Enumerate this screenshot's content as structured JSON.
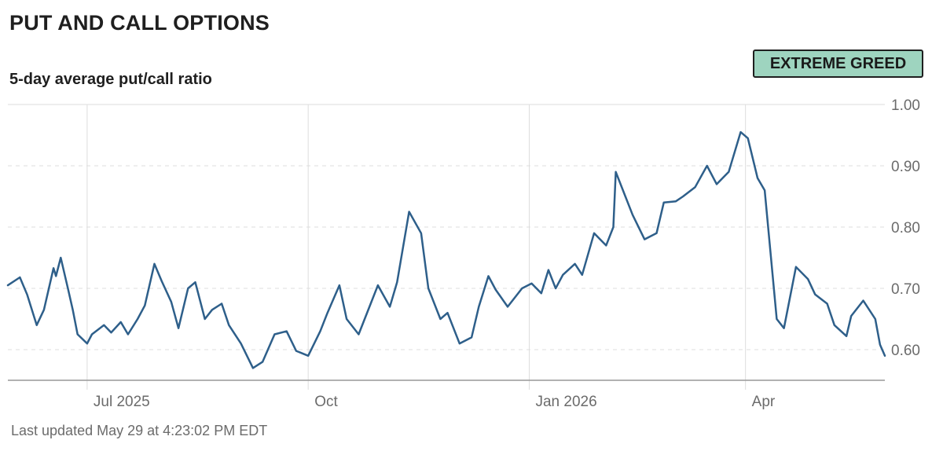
{
  "header": {
    "title": "PUT AND CALL OPTIONS",
    "subtitle": "5-day average put/call ratio",
    "badge": "EXTREME GREED"
  },
  "footer": {
    "last_updated": "Last updated May 29 at 4:23:02 PM EDT"
  },
  "colors": {
    "line": "#2e5f8a",
    "badge_bg": "#9ed4bf",
    "grid": "#dddddd",
    "axis": "#999999"
  },
  "chart_data": {
    "type": "line",
    "title": "PUT AND CALL OPTIONS",
    "subtitle": "5-day average put/call ratio",
    "xlabel": "",
    "ylabel": "",
    "ylim": [
      0.55,
      1.0
    ],
    "y_ticks": [
      0.6,
      0.7,
      0.8,
      0.9,
      1.0
    ],
    "y_tick_labels": [
      "0.60",
      "0.70",
      "0.80",
      "0.90",
      "1.00"
    ],
    "x_range": [
      "2025-05-29",
      "2026-05-29"
    ],
    "x_ticks": [
      "2025-07-01",
      "2025-10-01",
      "2026-01-01",
      "2026-04-01"
    ],
    "x_tick_labels": [
      "Jul 2025",
      "Oct",
      "Jan 2026",
      "Apr"
    ],
    "grid": true,
    "series": [
      {
        "x": [
          "2025-05-29",
          "2025-06-03",
          "2025-06-06",
          "2025-06-10",
          "2025-06-13",
          "2025-06-17",
          "2025-06-18",
          "2025-06-20",
          "2025-06-23",
          "2025-06-25",
          "2025-06-27",
          "2025-07-01",
          "2025-07-03",
          "2025-07-08",
          "2025-07-11",
          "2025-07-15",
          "2025-07-18",
          "2025-07-22",
          "2025-07-25",
          "2025-07-29",
          "2025-08-01",
          "2025-08-05",
          "2025-08-08",
          "2025-08-12",
          "2025-08-15",
          "2025-08-19",
          "2025-08-22",
          "2025-08-26",
          "2025-08-29",
          "2025-09-03",
          "2025-09-08",
          "2025-09-12",
          "2025-09-17",
          "2025-09-22",
          "2025-09-26",
          "2025-10-01",
          "2025-10-06",
          "2025-10-09",
          "2025-10-14",
          "2025-10-17",
          "2025-10-22",
          "2025-10-27",
          "2025-10-30",
          "2025-11-04",
          "2025-11-07",
          "2025-11-12",
          "2025-11-17",
          "2025-11-20",
          "2025-11-25",
          "2025-11-28",
          "2025-12-03",
          "2025-12-08",
          "2025-12-11",
          "2025-12-15",
          "2025-12-18",
          "2025-12-23",
          "2025-12-29",
          "2026-01-02",
          "2026-01-06",
          "2026-01-09",
          "2026-01-12",
          "2026-01-15",
          "2026-01-20",
          "2026-01-23",
          "2026-01-28",
          "2026-02-02",
          "2026-02-05",
          "2026-02-06",
          "2026-02-10",
          "2026-02-13",
          "2026-02-18",
          "2026-02-23",
          "2026-02-26",
          "2026-03-03",
          "2026-03-06",
          "2026-03-11",
          "2026-03-16",
          "2026-03-20",
          "2026-03-25",
          "2026-03-30",
          "2026-04-02",
          "2026-04-06",
          "2026-04-09",
          "2026-04-14",
          "2026-04-17",
          "2026-04-22",
          "2026-04-27",
          "2026-04-30",
          "2026-05-05",
          "2026-05-08",
          "2026-05-13",
          "2026-05-15",
          "2026-05-20",
          "2026-05-25",
          "2026-05-27",
          "2026-05-29"
        ],
        "values": [
          0.705,
          0.718,
          0.69,
          0.64,
          0.665,
          0.733,
          0.72,
          0.75,
          0.7,
          0.665,
          0.625,
          0.61,
          0.625,
          0.64,
          0.628,
          0.645,
          0.625,
          0.65,
          0.672,
          0.74,
          0.712,
          0.678,
          0.635,
          0.7,
          0.71,
          0.65,
          0.665,
          0.675,
          0.64,
          0.61,
          0.57,
          0.58,
          0.625,
          0.63,
          0.598,
          0.59,
          0.63,
          0.66,
          0.705,
          0.65,
          0.625,
          0.675,
          0.705,
          0.67,
          0.71,
          0.825,
          0.79,
          0.7,
          0.65,
          0.66,
          0.61,
          0.62,
          0.67,
          0.72,
          0.698,
          0.67,
          0.7,
          0.708,
          0.692,
          0.73,
          0.7,
          0.722,
          0.74,
          0.722,
          0.79,
          0.77,
          0.8,
          0.89,
          0.85,
          0.82,
          0.78,
          0.79,
          0.84,
          0.842,
          0.85,
          0.865,
          0.9,
          0.87,
          0.89,
          0.955,
          0.945,
          0.88,
          0.86,
          0.65,
          0.635,
          0.735,
          0.715,
          0.69,
          0.675,
          0.64,
          0.622,
          0.655,
          0.68,
          0.65,
          0.608,
          0.59
        ]
      }
    ]
  }
}
